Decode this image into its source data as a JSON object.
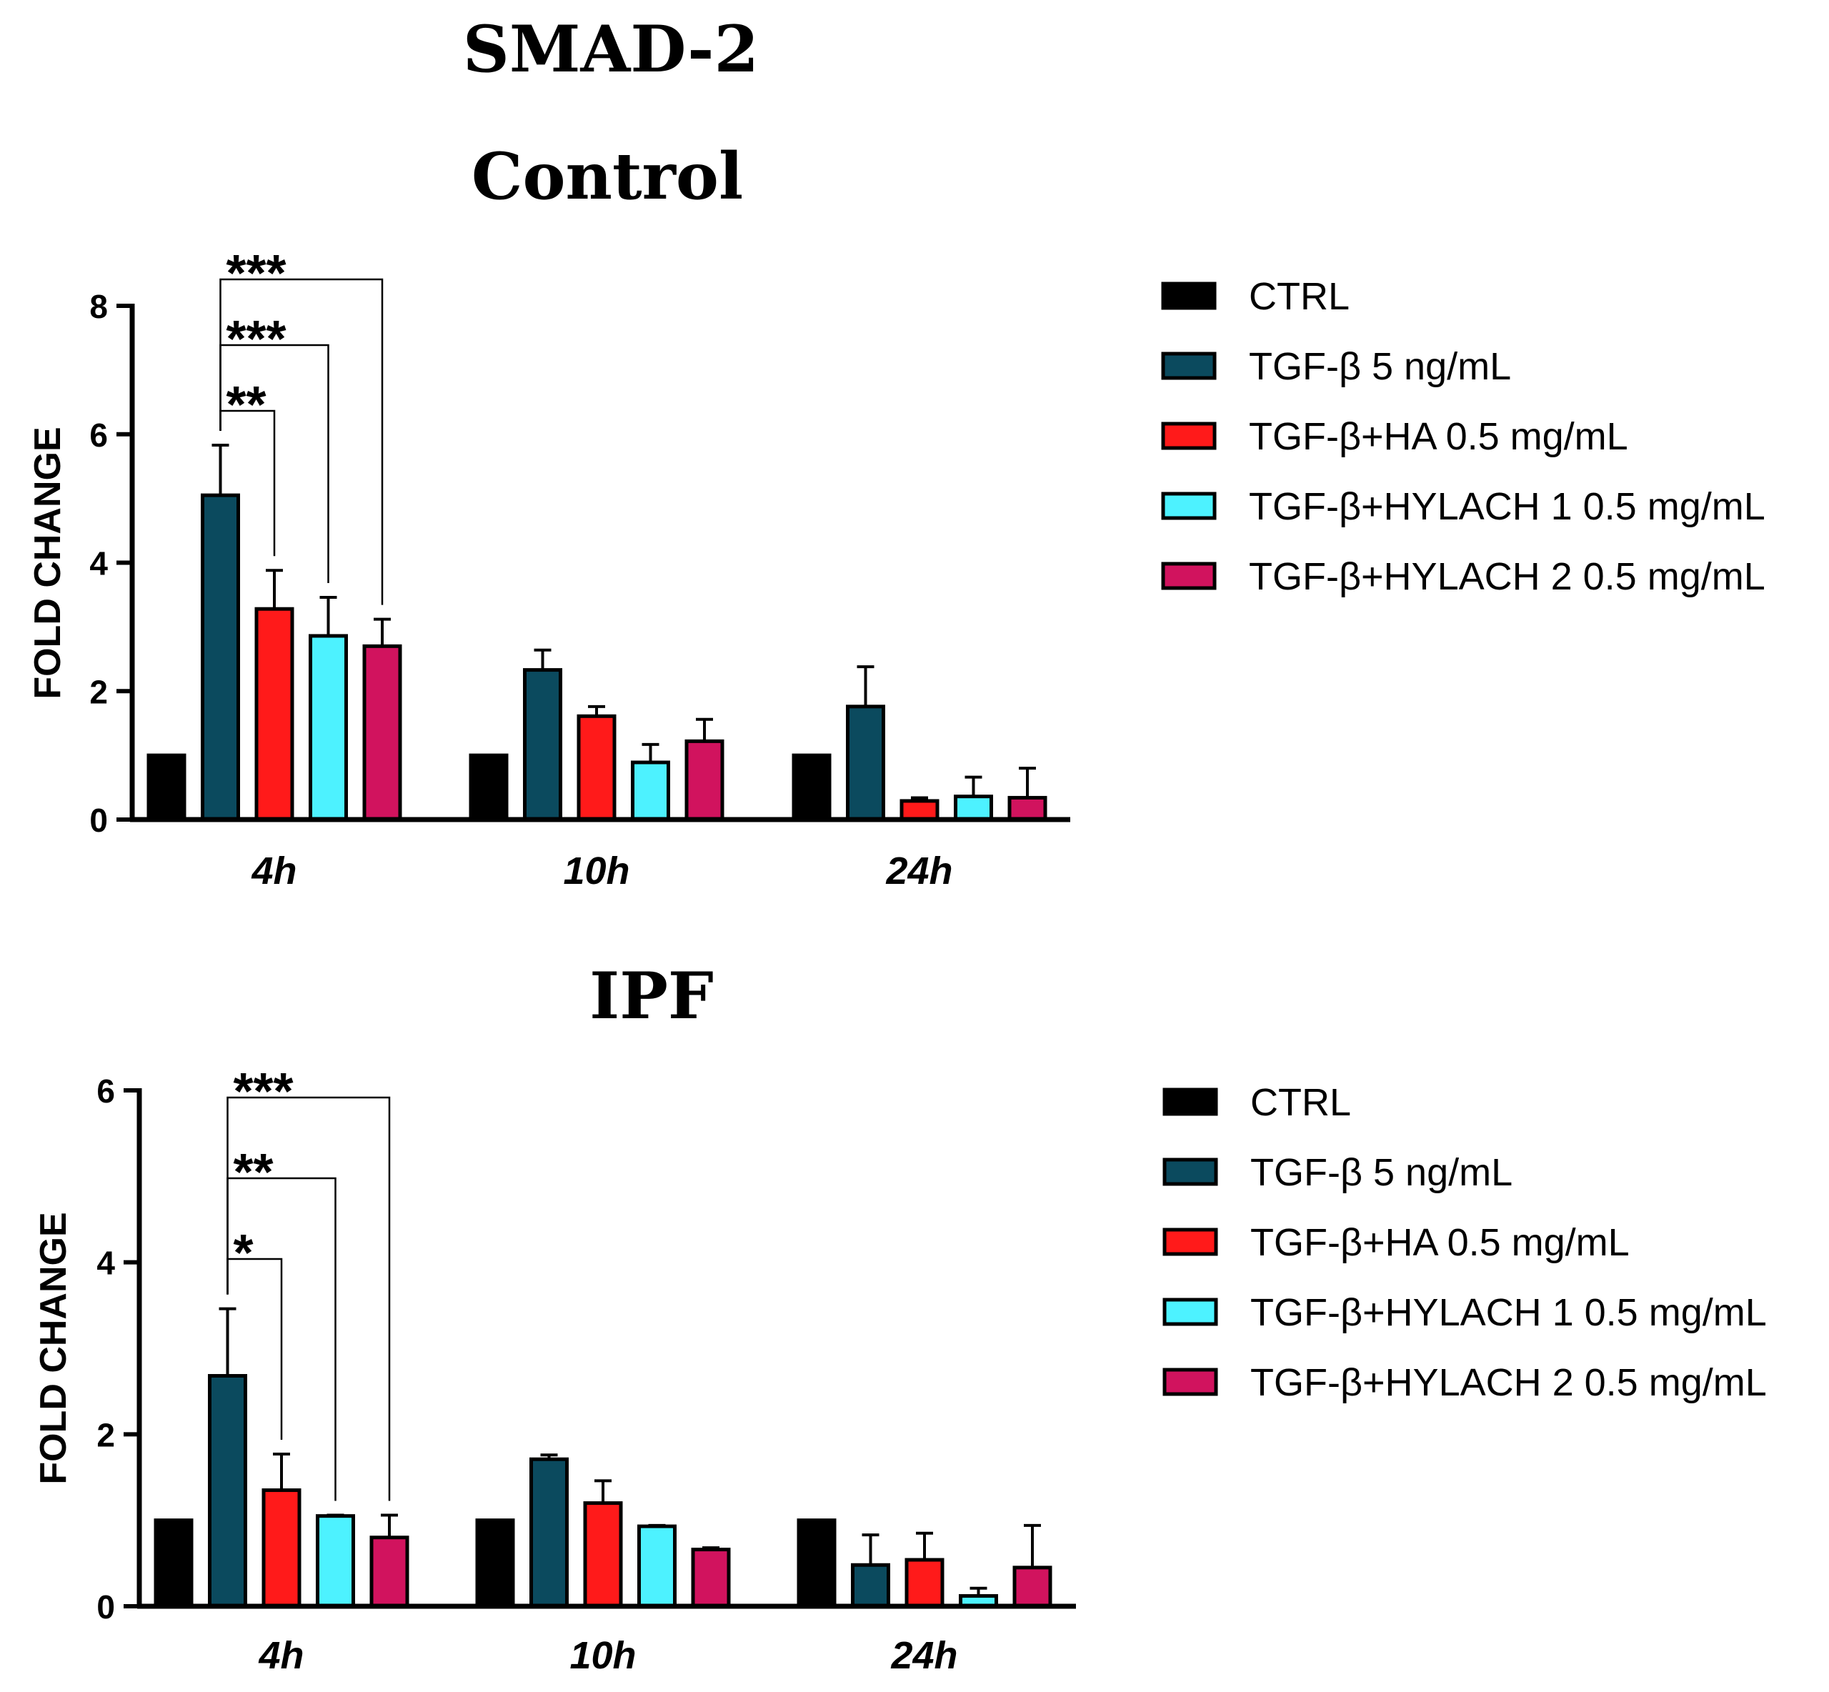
{
  "figure_title": "SMAD-2",
  "series_colors": [
    "#000000",
    "#0b4a5e",
    "#ff1a1a",
    "#4df2ff",
    "#d1135e"
  ],
  "chart_data": [
    {
      "type": "bar",
      "title": "Control",
      "xlabel": "",
      "ylabel": "FOLD CHANGE",
      "ylim": [
        0,
        8
      ],
      "yticks": [
        0,
        2,
        4,
        6,
        8
      ],
      "categories": [
        "4h",
        "10h",
        "24h"
      ],
      "series": [
        {
          "name": "CTRL",
          "values": [
            1.0,
            1.0,
            1.0
          ],
          "errors": [
            0,
            0,
            0
          ]
        },
        {
          "name": "TGF-β 5 ng/mL",
          "values": [
            5.05,
            2.33,
            1.76
          ],
          "errors": [
            0.78,
            0.31,
            0.62
          ]
        },
        {
          "name": "TGF-β+HA 0.5 mg/mL",
          "values": [
            3.28,
            1.61,
            0.29
          ],
          "errors": [
            0.6,
            0.15,
            0.05
          ]
        },
        {
          "name": "TGF-β+HYLACH 1 0.5 mg/mL",
          "values": [
            2.86,
            0.89,
            0.36
          ],
          "errors": [
            0.6,
            0.28,
            0.3
          ]
        },
        {
          "name": "TGF-β+HYLACH 2 0.5 mg/mL",
          "values": [
            2.7,
            1.22,
            0.34
          ],
          "errors": [
            0.42,
            0.34,
            0.46
          ]
        }
      ],
      "significance": [
        {
          "from_series": 1,
          "to_series": 2,
          "category": 0,
          "label": "**"
        },
        {
          "from_series": 1,
          "to_series": 3,
          "category": 0,
          "label": "***"
        },
        {
          "from_series": 1,
          "to_series": 4,
          "category": 0,
          "label": "***"
        }
      ],
      "legend": "right"
    },
    {
      "type": "bar",
      "title": "IPF",
      "xlabel": "",
      "ylabel": "FOLD CHANGE",
      "ylim": [
        0,
        6
      ],
      "yticks": [
        0,
        2,
        4,
        6
      ],
      "categories": [
        "4h",
        "10h",
        "24h"
      ],
      "series": [
        {
          "name": "CTRL",
          "values": [
            1.0,
            1.0,
            1.0
          ],
          "errors": [
            0,
            0,
            0
          ]
        },
        {
          "name": "TGF-β 5 ng/mL",
          "values": [
            2.68,
            1.71,
            0.48
          ],
          "errors": [
            0.78,
            0.05,
            0.35
          ]
        },
        {
          "name": "TGF-β+HA 0.5 mg/mL",
          "values": [
            1.35,
            1.2,
            0.54
          ],
          "errors": [
            0.42,
            0.26,
            0.31
          ]
        },
        {
          "name": "TGF-β+HYLACH 1 0.5 mg/mL",
          "values": [
            1.05,
            0.93,
            0.12
          ],
          "errors": [
            0.01,
            0.01,
            0.09
          ]
        },
        {
          "name": "TGF-β+HYLACH 2 0.5 mg/mL",
          "values": [
            0.8,
            0.66,
            0.45
          ],
          "errors": [
            0.26,
            0.02,
            0.49
          ]
        }
      ],
      "significance": [
        {
          "from_series": 1,
          "to_series": 2,
          "category": 0,
          "label": "*"
        },
        {
          "from_series": 1,
          "to_series": 3,
          "category": 0,
          "label": "**"
        },
        {
          "from_series": 1,
          "to_series": 4,
          "category": 0,
          "label": "***"
        }
      ],
      "legend": "right"
    }
  ]
}
